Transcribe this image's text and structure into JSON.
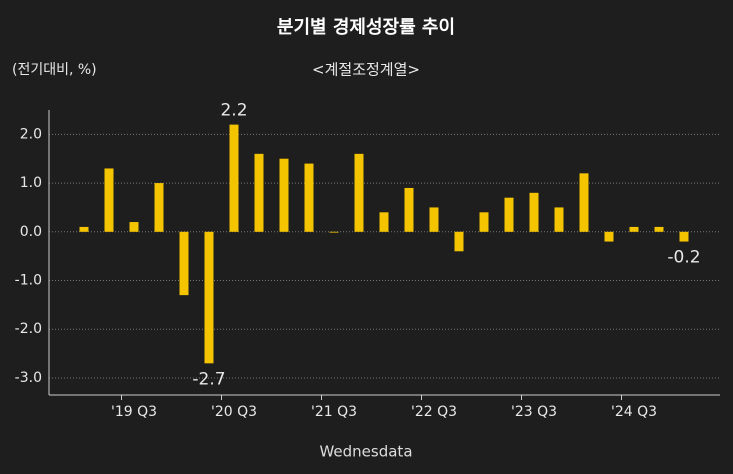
{
  "chart_data": {
    "type": "bar",
    "title": "분기별 경제성장률 추이",
    "subtitle": "<계절조정계열>",
    "y_label": "(전기대비, %)",
    "source": "Wednesdata",
    "categories": [
      null,
      null,
      "'19 Q3",
      null,
      null,
      null,
      "'20 Q3",
      null,
      null,
      null,
      "'21 Q3",
      null,
      null,
      null,
      "'22 Q3",
      null,
      null,
      null,
      "'23 Q3",
      null,
      null,
      null,
      "'24 Q3",
      null,
      null
    ],
    "values": [
      0.1,
      1.3,
      0.2,
      1.0,
      -1.3,
      -2.7,
      2.2,
      1.6,
      1.5,
      1.4,
      0.0,
      1.6,
      0.4,
      0.9,
      0.5,
      -0.4,
      0.4,
      0.7,
      0.8,
      0.5,
      1.2,
      -0.2,
      0.1,
      0.1,
      -0.2
    ],
    "value_labels": [
      null,
      null,
      null,
      null,
      null,
      "-2.7",
      "2.2",
      null,
      null,
      null,
      null,
      null,
      null,
      null,
      null,
      null,
      null,
      null,
      null,
      null,
      null,
      null,
      null,
      null,
      "-0.2"
    ],
    "color": "#f5c400",
    "ylim": [
      -3.35,
      2.5
    ],
    "yticks": [
      {
        "value": -3,
        "label": "-3.0"
      },
      {
        "value": -2,
        "label": "-2.0"
      },
      {
        "value": -1,
        "label": "-1.0"
      },
      {
        "value": 0,
        "label": "0.0"
      },
      {
        "value": 1,
        "label": "1.0"
      },
      {
        "value": 2,
        "label": "2.0"
      }
    ],
    "grid": true
  }
}
